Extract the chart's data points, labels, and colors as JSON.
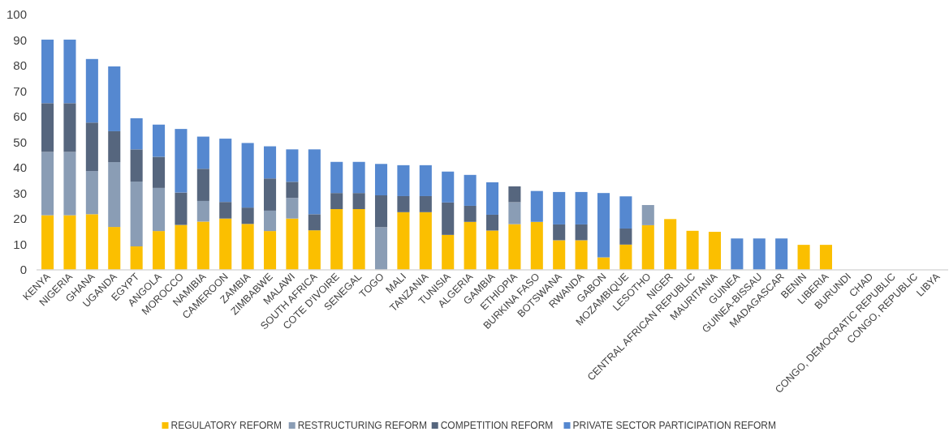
{
  "chart_data": {
    "type": "bar",
    "stacked": true,
    "legend": "bottom",
    "grid": false,
    "categories": [
      "KENYA",
      "NIGERIA",
      "GHANA",
      "UGANDA",
      "EGYPT",
      "ANGOLA",
      "MOROCCO",
      "NAMIBIA",
      "CAMEROON",
      "ZAMBIA",
      "ZIMBABWE",
      "MALAWI",
      "SOUTH AFRICA",
      "COTE D'IVOIRE",
      "SENEGAL",
      "TOGO",
      "MALI",
      "TANZANIA",
      "TUNISIA",
      "ALGERIA",
      "GAMBIA",
      "ETHIOPIA",
      "BURKINA FASO",
      "BOTSWANA",
      "RWANDA",
      "GABON",
      "MOZAMBIQUE",
      "LESOTHO",
      "NIGER",
      "CENTRAL AFRICAN REPUBLIC",
      "MAURITANIA",
      "GUINEA",
      "GUINEA-BISSAU",
      "MADAGASCAR",
      "BENIN",
      "LIBERIA",
      "BURUNDI",
      "CHAD",
      "CONGO, DEMOCRATIC REPUBLIC",
      "CONGO, REPUBLIC",
      "LIBYA"
    ],
    "series": [
      {
        "name": "REGULATORY REFORM",
        "color": "#fbbf00",
        "values": [
          21.4,
          21.4,
          21.8,
          16.8,
          9.2,
          15.2,
          17.6,
          18.9,
          20.1,
          18.0,
          15.2,
          20.1,
          15.5,
          23.8,
          23.8,
          0,
          22.6,
          22.6,
          13.7,
          18.8,
          15.4,
          17.9,
          18.8,
          11.6,
          11.6,
          4.9,
          9.9,
          17.5,
          19.9,
          15.3,
          14.9,
          0,
          0,
          0,
          9.8,
          9.8,
          0,
          0,
          0,
          0,
          0
        ]
      },
      {
        "name": "RESTRUCTURING REFORM",
        "color": "#8a9db5",
        "values": [
          24.8,
          24.8,
          16.9,
          25.4,
          25.4,
          16.9,
          0,
          8.1,
          0,
          0,
          8.0,
          8.1,
          0,
          0,
          0,
          16.7,
          0,
          0,
          0,
          0,
          0,
          8.6,
          0,
          0,
          0,
          0,
          0,
          7.9,
          0,
          0,
          0,
          0,
          0,
          0,
          0,
          0,
          0,
          0,
          0,
          0,
          0
        ]
      },
      {
        "name": "COMPETITION REFORM",
        "color": "#56667e",
        "values": [
          19.1,
          19.1,
          19.0,
          12.1,
          12.6,
          12.2,
          12.7,
          12.6,
          6.5,
          6.4,
          12.6,
          6.3,
          6.3,
          6.3,
          6.3,
          12.5,
          6.3,
          6.3,
          12.7,
          6.3,
          6.2,
          6.2,
          0,
          6.2,
          6.2,
          0,
          6.3,
          0,
          0,
          0,
          0,
          0,
          0,
          0,
          0,
          0,
          0,
          0,
          0,
          0,
          0
        ]
      },
      {
        "name": "PRIVATE SECTOR PARTICIPATION REFORM",
        "color": "#5588d0",
        "values": [
          24.9,
          24.9,
          24.9,
          25.4,
          12.2,
          12.6,
          24.9,
          12.6,
          24.8,
          25.3,
          12.6,
          12.7,
          25.4,
          12.2,
          12.2,
          12.3,
          12.1,
          12.1,
          12.1,
          12.1,
          12.7,
          0,
          12.1,
          12.7,
          12.7,
          25.2,
          12.6,
          0,
          0,
          0,
          0,
          12.3,
          12.3,
          12.3,
          0,
          0,
          0,
          0,
          0,
          0,
          0
        ]
      }
    ],
    "ylim": [
      0,
      100
    ],
    "yticks": [
      0,
      10,
      20,
      30,
      40,
      50,
      60,
      70,
      80,
      90,
      100
    ]
  }
}
